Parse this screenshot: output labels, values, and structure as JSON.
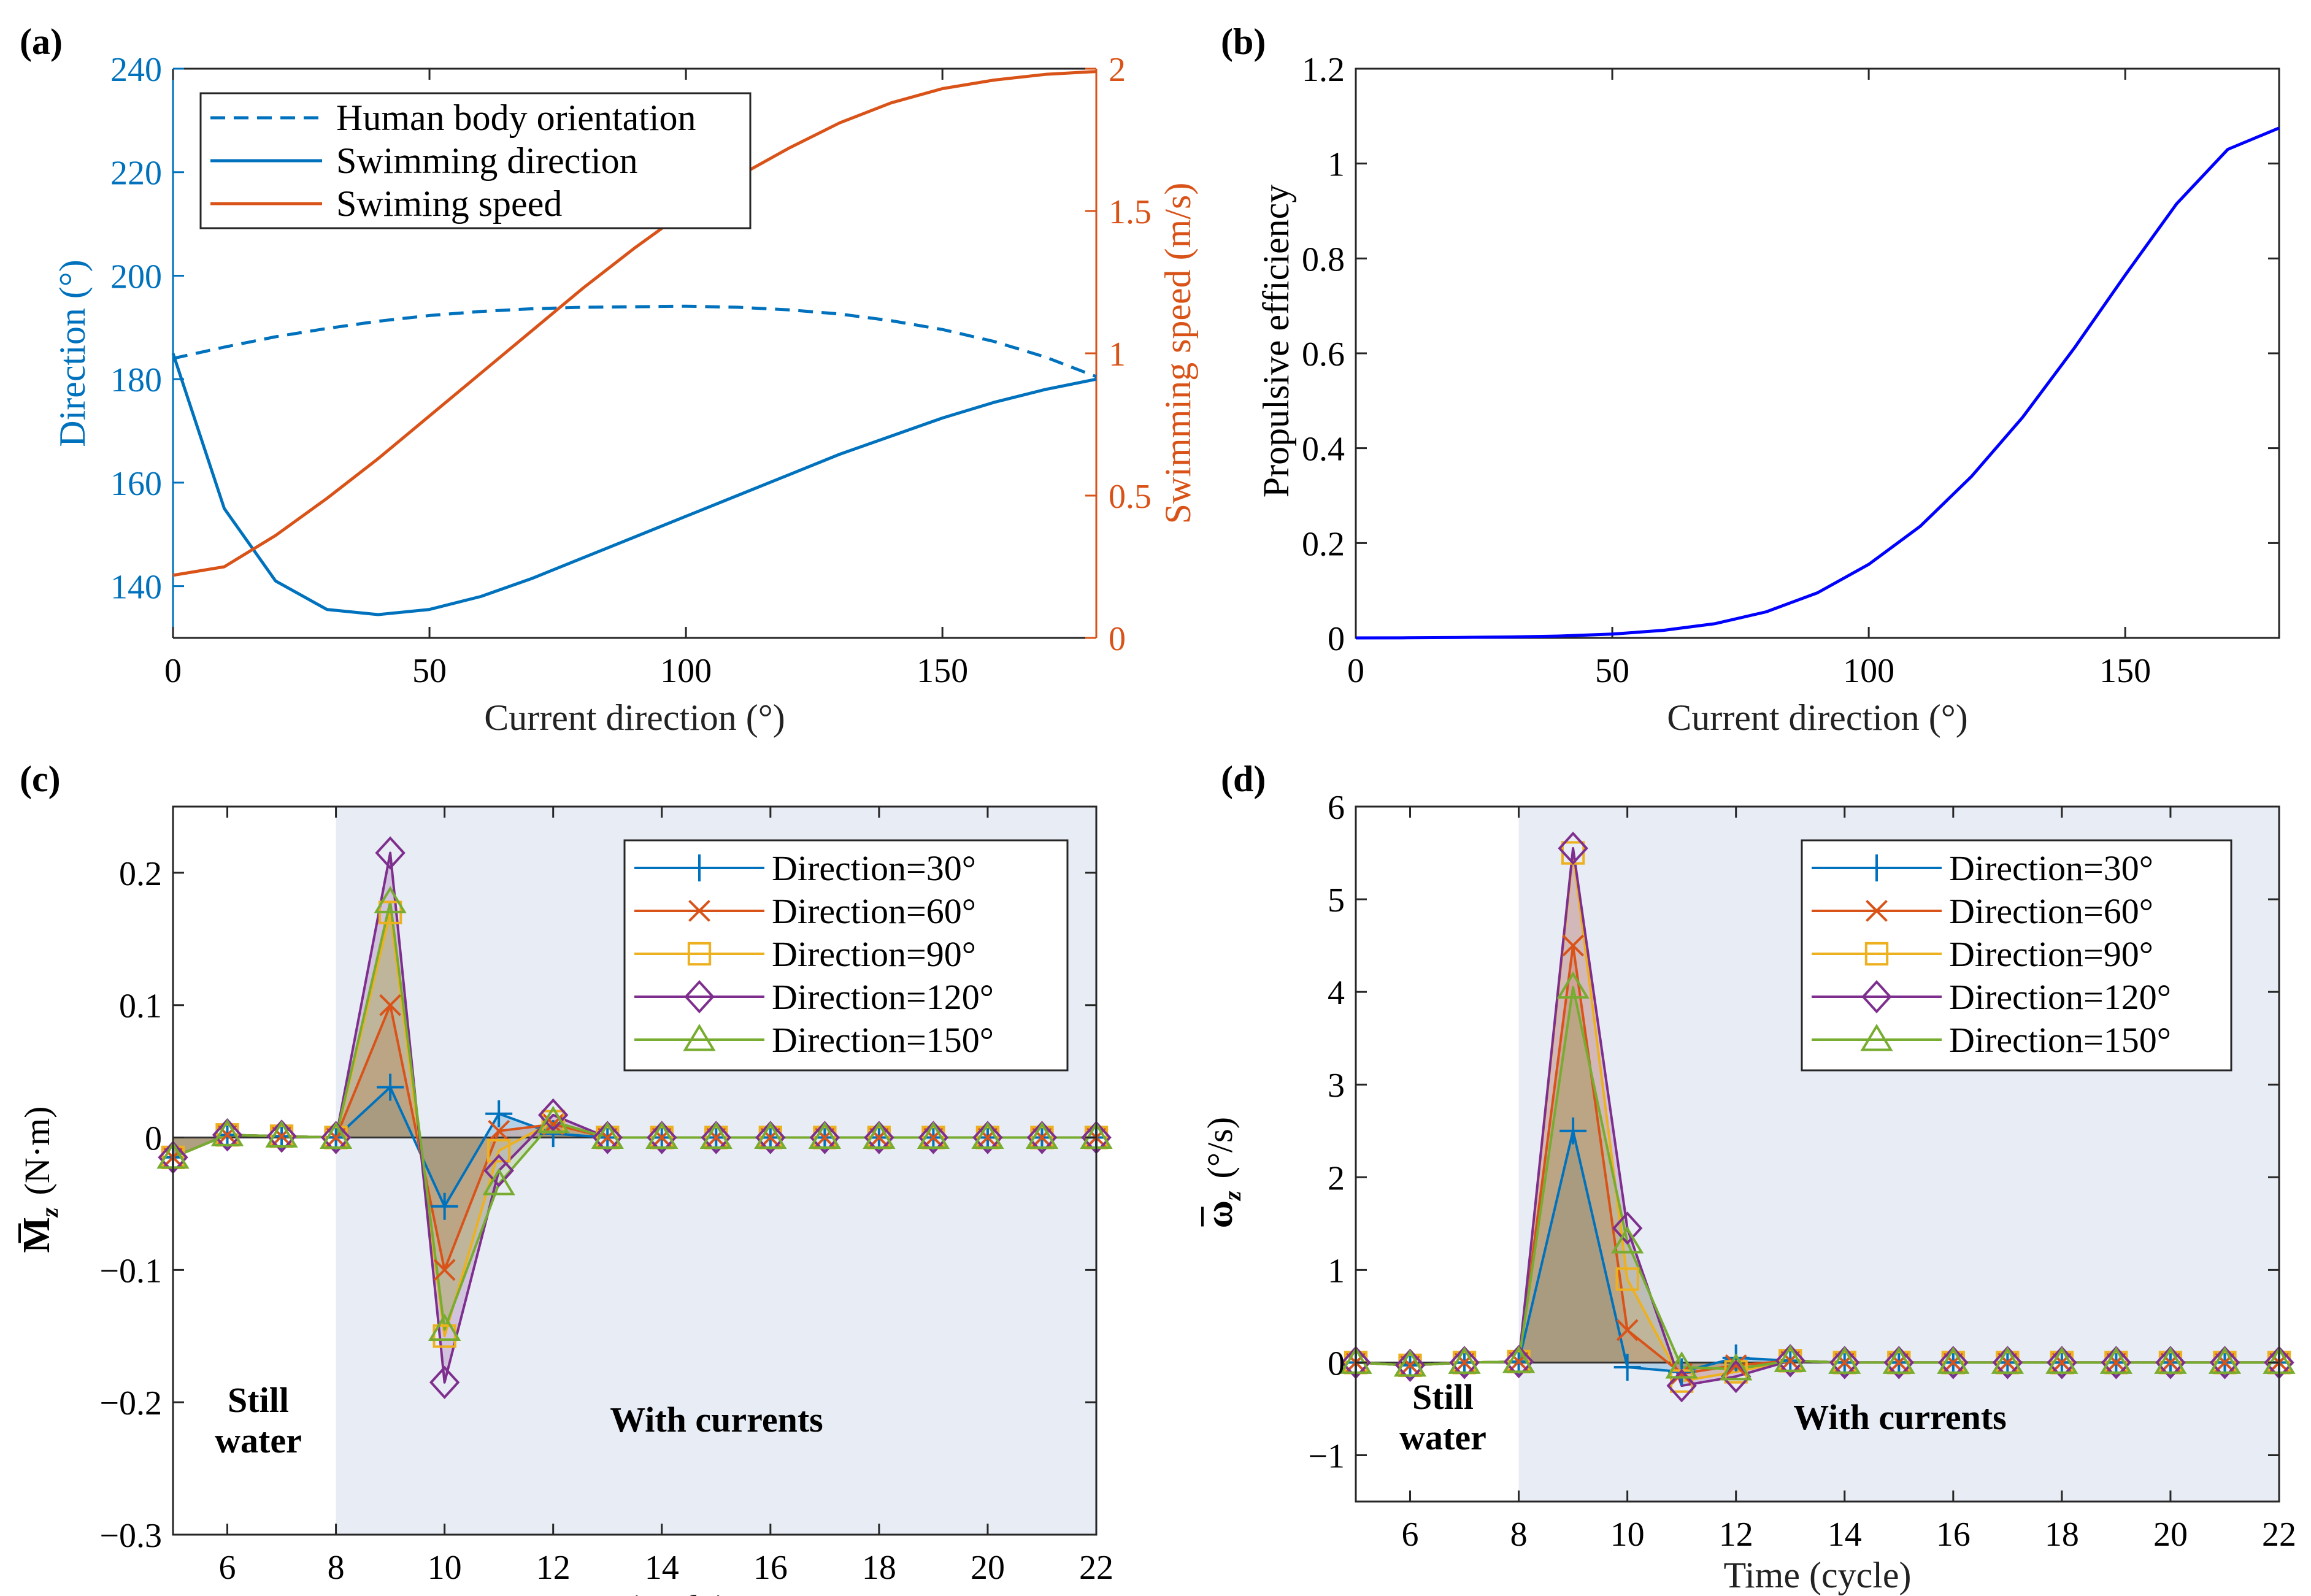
{
  "chart_data": [
    {
      "panel_label": "(a)",
      "type": "line",
      "xlabel": "Current direction (°)",
      "ylabel_left": "Direction (°)",
      "ylabel_right": "Swimming speed (m/s)",
      "xlim": [
        0,
        180
      ],
      "ylim_left": [
        130,
        240
      ],
      "ylim_right": [
        0,
        2
      ],
      "xticks": [
        "0",
        "50",
        "100",
        "150"
      ],
      "yticks_left": [
        "140",
        "160",
        "180",
        "200",
        "220",
        "240"
      ],
      "yticks_right": [
        "0",
        "0.5",
        "1",
        "1.5",
        "2"
      ],
      "legend_position": "top-left",
      "x": [
        0,
        10,
        20,
        30,
        40,
        50,
        60,
        70,
        80,
        90,
        100,
        110,
        120,
        130,
        140,
        150,
        160,
        170,
        180
      ],
      "series": [
        {
          "name": "Human body orientation",
          "axis": "left",
          "style": "dashed",
          "color": "#0072BD",
          "values": [
            184,
            186.2,
            188.2,
            189.8,
            191.2,
            192.3,
            193.1,
            193.6,
            193.9,
            194.0,
            194.1,
            193.9,
            193.4,
            192.6,
            191.3,
            189.6,
            187.3,
            184.3,
            180.5
          ]
        },
        {
          "name": "Swimming direction",
          "axis": "left",
          "style": "solid",
          "color": "#0072BD",
          "values": [
            185,
            155,
            141,
            135.5,
            134.5,
            135.5,
            138,
            141.5,
            145.5,
            149.5,
            153.5,
            157.5,
            161.5,
            165.5,
            169,
            172.5,
            175.5,
            178,
            180
          ]
        },
        {
          "name": "Swiming speed",
          "axis": "right",
          "style": "solid",
          "color": "#D95319",
          "values": [
            0.22,
            0.25,
            0.36,
            0.49,
            0.63,
            0.78,
            0.93,
            1.08,
            1.23,
            1.37,
            1.5,
            1.62,
            1.72,
            1.81,
            1.88,
            1.93,
            1.96,
            1.98,
            1.99
          ]
        }
      ]
    },
    {
      "panel_label": "(b)",
      "type": "line",
      "xlabel": "Current direction (°)",
      "ylabel": "Propulsive efficiency",
      "xlim": [
        0,
        180
      ],
      "ylim": [
        0,
        1.2
      ],
      "xticks": [
        "0",
        "50",
        "100",
        "150"
      ],
      "yticks": [
        "0",
        "0.2",
        "0.4",
        "0.6",
        "0.8",
        "1",
        "1.2"
      ],
      "x": [
        0,
        10,
        20,
        30,
        40,
        50,
        60,
        70,
        80,
        90,
        100,
        110,
        120,
        130,
        140,
        150,
        160,
        170,
        180
      ],
      "series": [
        {
          "color": "#0000FF",
          "values": [
            0,
            0.0003,
            0.001,
            0.002,
            0.004,
            0.008,
            0.016,
            0.03,
            0.055,
            0.095,
            0.155,
            0.235,
            0.34,
            0.465,
            0.61,
            0.765,
            0.915,
            1.03,
            1.075
          ]
        }
      ]
    },
    {
      "panel_label": "(c)",
      "type": "line",
      "xlabel": "Time (cycle)",
      "ylabel_main": "M",
      "ylabel_sub": "z",
      "ylabel_unit": "(N·m)",
      "xlim": [
        5,
        22
      ],
      "ylim": [
        -0.3,
        0.25
      ],
      "xticks": [
        "6",
        "8",
        "10",
        "12",
        "14",
        "16",
        "18",
        "20",
        "22"
      ],
      "yticks": [
        "-0.3",
        "-0.2",
        "-0.1",
        "0",
        "0.1",
        "0.2"
      ],
      "shade_from": 8,
      "annotations": [
        {
          "text1": "Still",
          "text2": "water"
        },
        {
          "text": "With currents"
        }
      ],
      "legend_position": "top-right",
      "x": [
        5,
        6,
        7,
        8,
        9,
        10,
        11,
        12,
        13,
        14,
        15,
        16,
        17,
        18,
        19,
        20,
        21,
        22
      ],
      "series": [
        {
          "name": "Direction=30°",
          "marker": "plus",
          "color": "#0072BD",
          "values": [
            -0.015,
            0.002,
            0.001,
            0.0,
            0.038,
            -0.052,
            0.018,
            0.003,
            0,
            0,
            0,
            0,
            0,
            0,
            0,
            0,
            0,
            0
          ]
        },
        {
          "name": "Direction=60°",
          "marker": "x",
          "color": "#D95319",
          "values": [
            -0.015,
            0.002,
            0.001,
            0.0,
            0.1,
            -0.1,
            0.005,
            0.01,
            0,
            0,
            0,
            0,
            0,
            0,
            0,
            0,
            0,
            0
          ]
        },
        {
          "name": "Direction=90°",
          "marker": "square",
          "color": "#EDB120",
          "values": [
            -0.015,
            0.002,
            0.001,
            0.0,
            0.17,
            -0.15,
            -0.01,
            0.012,
            0,
            0,
            0,
            0,
            0,
            0,
            0,
            0,
            0,
            0
          ]
        },
        {
          "name": "Direction=120°",
          "marker": "diamond",
          "color": "#7E2F8E",
          "values": [
            -0.015,
            0.002,
            0.001,
            0.0,
            0.215,
            -0.185,
            -0.025,
            0.017,
            0,
            0,
            0,
            0,
            0,
            0,
            0,
            0,
            0,
            0
          ]
        },
        {
          "name": "Direction=150°",
          "marker": "triangle",
          "color": "#77AC30",
          "values": [
            -0.015,
            0.002,
            0.001,
            0.0,
            0.178,
            -0.145,
            -0.035,
            0.012,
            0,
            0,
            0,
            0,
            0,
            0,
            0,
            0,
            0,
            0
          ]
        }
      ]
    },
    {
      "panel_label": "(d)",
      "type": "line",
      "xlabel": "Time (cycle)",
      "ylabel_main": "ω",
      "ylabel_sub": "z",
      "ylabel_unit": "(°/s)",
      "xlim": [
        5,
        22
      ],
      "ylim": [
        -1.5,
        6
      ],
      "xticks": [
        "6",
        "8",
        "10",
        "12",
        "14",
        "16",
        "18",
        "20",
        "22"
      ],
      "yticks": [
        "-1",
        "0",
        "1",
        "2",
        "3",
        "4",
        "5",
        "6"
      ],
      "shade_from": 8,
      "annotations": [
        {
          "text1": "Still",
          "text2": "water"
        },
        {
          "text": "With currents"
        }
      ],
      "legend_position": "top-right",
      "x": [
        5,
        6,
        7,
        8,
        9,
        10,
        11,
        12,
        13,
        14,
        15,
        16,
        17,
        18,
        19,
        20,
        21,
        22
      ],
      "series": [
        {
          "name": "Direction=30°",
          "marker": "plus",
          "color": "#0072BD",
          "values": [
            0,
            -0.03,
            0,
            0.01,
            2.5,
            -0.05,
            -0.1,
            0.05,
            0.02,
            0,
            0,
            0,
            0,
            0,
            0,
            0,
            0,
            0
          ]
        },
        {
          "name": "Direction=60°",
          "marker": "x",
          "color": "#D95319",
          "values": [
            0,
            -0.03,
            0,
            0.01,
            4.5,
            0.35,
            -0.12,
            -0.03,
            0.02,
            0,
            0,
            0,
            0,
            0,
            0,
            0,
            0,
            0
          ]
        },
        {
          "name": "Direction=90°",
          "marker": "square",
          "color": "#EDB120",
          "values": [
            0,
            -0.03,
            0,
            0.01,
            5.5,
            0.9,
            -0.2,
            -0.1,
            0.02,
            0,
            0,
            0,
            0,
            0,
            0,
            0,
            0,
            0
          ]
        },
        {
          "name": "Direction=120°",
          "marker": "diamond",
          "color": "#7E2F8E",
          "values": [
            0,
            -0.03,
            0,
            0.01,
            5.55,
            1.45,
            -0.25,
            -0.15,
            0.02,
            0,
            0,
            0,
            0,
            0,
            0,
            0,
            0,
            0
          ]
        },
        {
          "name": "Direction=150°",
          "marker": "triangle",
          "color": "#77AC30",
          "values": [
            0,
            -0.03,
            0,
            0.01,
            4.05,
            1.3,
            -0.05,
            -0.07,
            0.02,
            0,
            0,
            0,
            0,
            0,
            0,
            0,
            0,
            0
          ]
        }
      ]
    }
  ]
}
